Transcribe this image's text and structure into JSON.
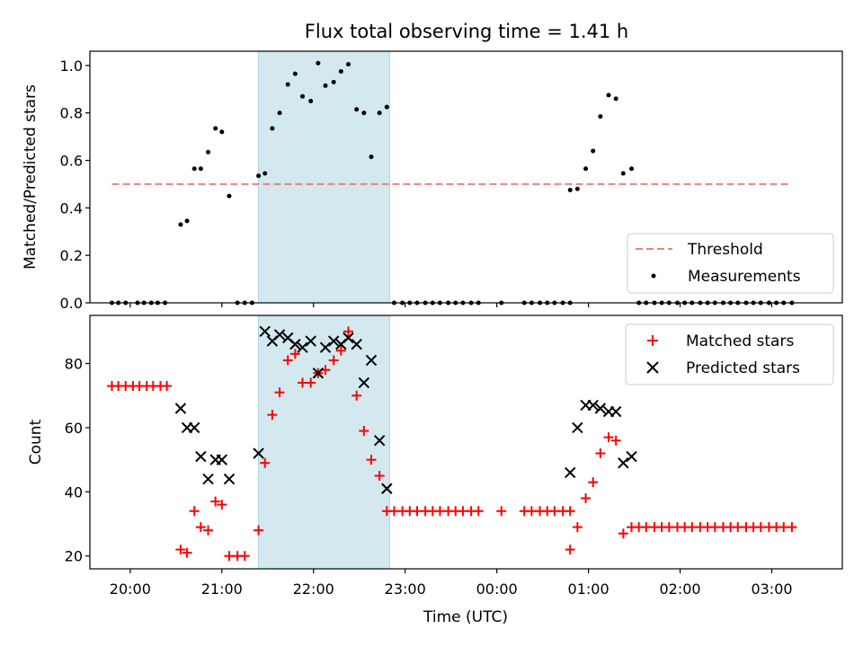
{
  "chart_data": [
    {
      "type": "scatter",
      "title": "Flux total observing time = 1.41 h",
      "xlabel": "",
      "ylabel": "Matched/Predicted stars",
      "x_axis": {
        "unit": "hours since 20:00 UTC",
        "range": [
          -0.44,
          7.77
        ],
        "ticks": [
          0,
          1,
          2,
          3,
          4,
          5,
          6,
          7
        ],
        "tick_labels": [
          "20:00",
          "21:00",
          "22:00",
          "23:00",
          "00:00",
          "01:00",
          "02:00",
          "03:00"
        ]
      },
      "ylim": [
        0,
        1.06
      ],
      "yticks": [
        0.0,
        0.2,
        0.4,
        0.6,
        0.8,
        1.0
      ],
      "ytick_labels": [
        "0.0",
        "0.2",
        "0.4",
        "0.6",
        "0.8",
        "1.0"
      ],
      "shaded_region": {
        "x_start": 1.4,
        "x_end": 2.83,
        "color": "#d3e9ef"
      },
      "threshold": {
        "name": "Threshold",
        "y": 0.5,
        "x_start": -0.2,
        "x_end": 7.2,
        "color": "#f08080",
        "style": "dashed"
      },
      "series": [
        {
          "name": "Measurements",
          "marker": "dot",
          "color": "#000000",
          "points": [
            [
              -0.2,
              0.0
            ],
            [
              -0.13,
              0.0
            ],
            [
              -0.05,
              0.0
            ],
            [
              0.08,
              0.0
            ],
            [
              0.15,
              0.0
            ],
            [
              0.23,
              0.0
            ],
            [
              0.3,
              0.0
            ],
            [
              0.38,
              0.0
            ],
            [
              0.55,
              0.33
            ],
            [
              0.62,
              0.345
            ],
            [
              0.7,
              0.565
            ],
            [
              0.77,
              0.565
            ],
            [
              0.85,
              0.635
            ],
            [
              0.93,
              0.735
            ],
            [
              1.0,
              0.72
            ],
            [
              1.08,
              0.45
            ],
            [
              1.17,
              0.0
            ],
            [
              1.25,
              0.0
            ],
            [
              1.33,
              0.0
            ],
            [
              1.4,
              0.535
            ],
            [
              1.47,
              0.545
            ],
            [
              1.55,
              0.735
            ],
            [
              1.63,
              0.8
            ],
            [
              1.72,
              0.92
            ],
            [
              1.8,
              0.965
            ],
            [
              1.88,
              0.87
            ],
            [
              1.97,
              0.85
            ],
            [
              2.05,
              1.01
            ],
            [
              2.13,
              0.915
            ],
            [
              2.22,
              0.93
            ],
            [
              2.3,
              0.975
            ],
            [
              2.38,
              1.005
            ],
            [
              2.47,
              0.815
            ],
            [
              2.55,
              0.8
            ],
            [
              2.63,
              0.615
            ],
            [
              2.72,
              0.8
            ],
            [
              2.8,
              0.825
            ],
            [
              2.88,
              0.0
            ],
            [
              2.97,
              0.0
            ],
            [
              3.05,
              0.0
            ],
            [
              3.13,
              0.0
            ],
            [
              3.22,
              0.0
            ],
            [
              3.3,
              0.0
            ],
            [
              3.38,
              0.0
            ],
            [
              3.47,
              0.0
            ],
            [
              3.55,
              0.0
            ],
            [
              3.63,
              0.0
            ],
            [
              3.72,
              0.0
            ],
            [
              3.8,
              0.0
            ],
            [
              4.05,
              0.0
            ],
            [
              4.3,
              0.0
            ],
            [
              4.38,
              0.0
            ],
            [
              4.47,
              0.0
            ],
            [
              4.55,
              0.0
            ],
            [
              4.63,
              0.0
            ],
            [
              4.72,
              0.0
            ],
            [
              4.8,
              0.0
            ],
            [
              4.8,
              0.475
            ],
            [
              4.88,
              0.48
            ],
            [
              4.97,
              0.565
            ],
            [
              5.05,
              0.64
            ],
            [
              5.13,
              0.785
            ],
            [
              5.22,
              0.875
            ],
            [
              5.3,
              0.86
            ],
            [
              5.38,
              0.545
            ],
            [
              5.47,
              0.565
            ],
            [
              5.55,
              0.0
            ],
            [
              5.63,
              0.0
            ],
            [
              5.72,
              0.0
            ],
            [
              5.8,
              0.0
            ],
            [
              5.88,
              0.0
            ],
            [
              5.97,
              0.0
            ],
            [
              6.05,
              0.0
            ],
            [
              6.13,
              0.0
            ],
            [
              6.22,
              0.0
            ],
            [
              6.3,
              0.0
            ],
            [
              6.38,
              0.0
            ],
            [
              6.47,
              0.0
            ],
            [
              6.55,
              0.0
            ],
            [
              6.63,
              0.0
            ],
            [
              6.72,
              0.0
            ],
            [
              6.8,
              0.0
            ],
            [
              6.88,
              0.0
            ],
            [
              6.97,
              0.0
            ],
            [
              7.05,
              0.0
            ],
            [
              7.13,
              0.0
            ],
            [
              7.22,
              0.0
            ]
          ]
        }
      ],
      "legend": {
        "placement": "lower right",
        "entries": [
          "Threshold",
          "Measurements"
        ]
      },
      "grid": false
    },
    {
      "type": "scatter",
      "title": "",
      "xlabel": "Time (UTC)",
      "ylabel": "Count",
      "x_axis": {
        "unit": "hours since 20:00 UTC",
        "range": [
          -0.44,
          7.77
        ],
        "ticks": [
          0,
          1,
          2,
          3,
          4,
          5,
          6,
          7
        ],
        "tick_labels": [
          "20:00",
          "21:00",
          "22:00",
          "23:00",
          "00:00",
          "01:00",
          "02:00",
          "03:00"
        ]
      },
      "ylim": [
        16,
        95
      ],
      "yticks": [
        20,
        40,
        60,
        80
      ],
      "ytick_labels": [
        "20",
        "40",
        "60",
        "80"
      ],
      "shaded_region": {
        "x_start": 1.4,
        "x_end": 2.83,
        "color": "#d3e9ef"
      },
      "series": [
        {
          "name": "Matched stars",
          "marker": "plus",
          "color": "#ff0000",
          "points": [
            [
              -0.2,
              73
            ],
            [
              -0.13,
              73
            ],
            [
              -0.05,
              73
            ],
            [
              0.03,
              73
            ],
            [
              0.1,
              73
            ],
            [
              0.18,
              73
            ],
            [
              0.25,
              73
            ],
            [
              0.33,
              73
            ],
            [
              0.4,
              73
            ],
            [
              0.55,
              22
            ],
            [
              0.62,
              21
            ],
            [
              0.7,
              34
            ],
            [
              0.77,
              29
            ],
            [
              0.85,
              28
            ],
            [
              0.93,
              37
            ],
            [
              1.0,
              36
            ],
            [
              1.08,
              20
            ],
            [
              1.17,
              20
            ],
            [
              1.25,
              20
            ],
            [
              1.4,
              28
            ],
            [
              1.47,
              49
            ],
            [
              1.55,
              64
            ],
            [
              1.63,
              71
            ],
            [
              1.72,
              81
            ],
            [
              1.8,
              83
            ],
            [
              1.88,
              74
            ],
            [
              1.97,
              74
            ],
            [
              2.05,
              77
            ],
            [
              2.13,
              78
            ],
            [
              2.22,
              81
            ],
            [
              2.3,
              84
            ],
            [
              2.38,
              90
            ],
            [
              2.47,
              70
            ],
            [
              2.55,
              59
            ],
            [
              2.63,
              50
            ],
            [
              2.72,
              45
            ],
            [
              2.8,
              34
            ],
            [
              2.88,
              34
            ],
            [
              2.97,
              34
            ],
            [
              3.05,
              34
            ],
            [
              3.13,
              34
            ],
            [
              3.22,
              34
            ],
            [
              3.3,
              34
            ],
            [
              3.38,
              34
            ],
            [
              3.47,
              34
            ],
            [
              3.55,
              34
            ],
            [
              3.63,
              34
            ],
            [
              3.72,
              34
            ],
            [
              3.8,
              34
            ],
            [
              4.05,
              34
            ],
            [
              4.3,
              34
            ],
            [
              4.38,
              34
            ],
            [
              4.47,
              34
            ],
            [
              4.55,
              34
            ],
            [
              4.63,
              34
            ],
            [
              4.72,
              34
            ],
            [
              4.8,
              34
            ],
            [
              4.8,
              22
            ],
            [
              4.88,
              29
            ],
            [
              4.97,
              38
            ],
            [
              5.05,
              43
            ],
            [
              5.13,
              52
            ],
            [
              5.22,
              57
            ],
            [
              5.3,
              56
            ],
            [
              5.38,
              27
            ],
            [
              5.47,
              29
            ],
            [
              5.55,
              29
            ],
            [
              5.63,
              29
            ],
            [
              5.72,
              29
            ],
            [
              5.8,
              29
            ],
            [
              5.88,
              29
            ],
            [
              5.97,
              29
            ],
            [
              6.05,
              29
            ],
            [
              6.13,
              29
            ],
            [
              6.22,
              29
            ],
            [
              6.3,
              29
            ],
            [
              6.38,
              29
            ],
            [
              6.47,
              29
            ],
            [
              6.55,
              29
            ],
            [
              6.63,
              29
            ],
            [
              6.72,
              29
            ],
            [
              6.8,
              29
            ],
            [
              6.88,
              29
            ],
            [
              6.97,
              29
            ],
            [
              7.05,
              29
            ],
            [
              7.13,
              29
            ],
            [
              7.22,
              29
            ]
          ]
        },
        {
          "name": "Predicted stars",
          "marker": "x",
          "color": "#000000",
          "points": [
            [
              0.55,
              66
            ],
            [
              0.62,
              60
            ],
            [
              0.7,
              60
            ],
            [
              0.77,
              51
            ],
            [
              0.85,
              44
            ],
            [
              0.93,
              50
            ],
            [
              1.0,
              50
            ],
            [
              1.08,
              44
            ],
            [
              1.4,
              52
            ],
            [
              1.47,
              90
            ],
            [
              1.55,
              87
            ],
            [
              1.63,
              89
            ],
            [
              1.72,
              88
            ],
            [
              1.8,
              86
            ],
            [
              1.88,
              85
            ],
            [
              1.97,
              87
            ],
            [
              2.05,
              77
            ],
            [
              2.13,
              85
            ],
            [
              2.22,
              87
            ],
            [
              2.3,
              86
            ],
            [
              2.38,
              88
            ],
            [
              2.47,
              86
            ],
            [
              2.55,
              74
            ],
            [
              2.63,
              81
            ],
            [
              2.72,
              56
            ],
            [
              2.8,
              41
            ],
            [
              4.8,
              46
            ],
            [
              4.88,
              60
            ],
            [
              4.97,
              67
            ],
            [
              5.05,
              67
            ],
            [
              5.13,
              66
            ],
            [
              5.22,
              65
            ],
            [
              5.3,
              65
            ],
            [
              5.38,
              49
            ],
            [
              5.47,
              51
            ]
          ]
        }
      ],
      "legend": {
        "placement": "top-right",
        "entries": [
          "Matched stars",
          "Predicted stars"
        ]
      },
      "grid": false
    }
  ]
}
